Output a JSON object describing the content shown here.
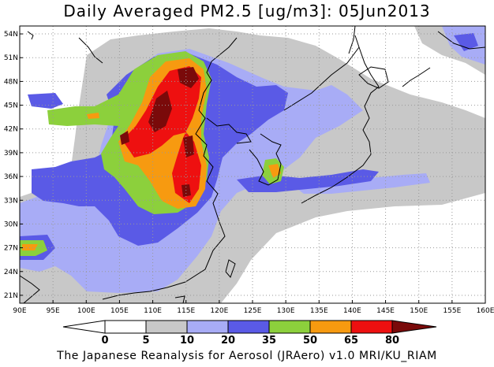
{
  "title": "Daily Averaged PM2.5 [ug/m3]: 05Jun2013",
  "footer": "The Japanese Reanalysis for Aerosol (JRAero) v1.0 MRI/KU_RIAM",
  "map": {
    "lon_range": [
      90,
      160
    ],
    "lat_range": [
      20,
      55
    ],
    "lon_ticks": [
      "90E",
      "95E",
      "100E",
      "105E",
      "110E",
      "115E",
      "120E",
      "125E",
      "130E",
      "135E",
      "140E",
      "145E",
      "150E",
      "155E",
      "160E"
    ],
    "lat_ticks": [
      "21N",
      "24N",
      "27N",
      "30N",
      "33N",
      "36N",
      "39N",
      "42N",
      "45N",
      "48N",
      "51N",
      "54N"
    ],
    "grid": true
  },
  "colorbar": {
    "levels": [
      "0",
      "5",
      "10",
      "20",
      "35",
      "50",
      "65",
      "80"
    ],
    "colors": [
      "#ffffff",
      "#c8c8c8",
      "#a8acf6",
      "#5a5ae6",
      "#8cd03c",
      "#f79a10",
      "#ee1010",
      "#7a0a0a"
    ]
  }
}
